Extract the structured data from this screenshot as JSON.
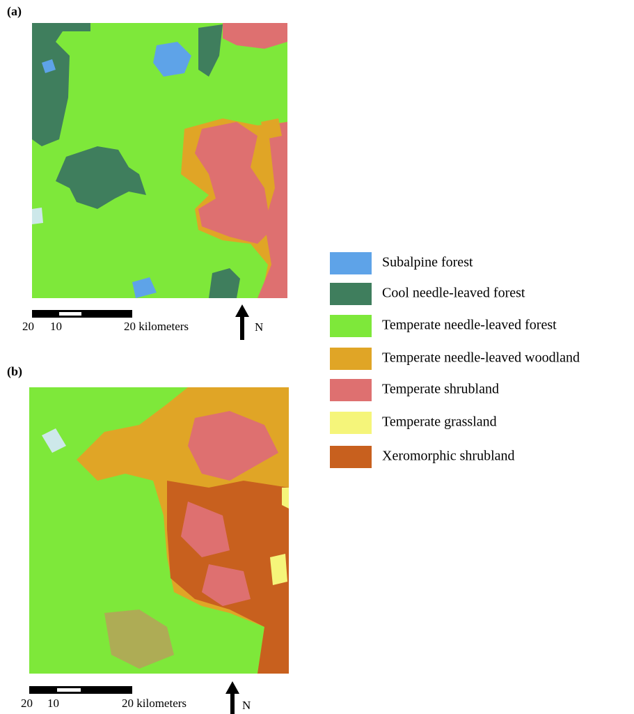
{
  "panels": [
    {
      "label": "(a)",
      "scale_labels": [
        "20",
        "10",
        "20 kilometers"
      ],
      "north": "N"
    },
    {
      "label": "(b)",
      "scale_labels": [
        "20",
        "10",
        "20 kilometers"
      ],
      "north": "N"
    }
  ],
  "legend": [
    {
      "label": "Subalpine forest",
      "color": "#5ea3e8"
    },
    {
      "label": "Cool needle-leaved forest",
      "color": "#3f7e5d"
    },
    {
      "label": "Temperate needle-leaved forest",
      "color": "#7ee83a"
    },
    {
      "label": "Temperate needle-leaved woodland",
      "color": "#e0a526"
    },
    {
      "label": "Temperate shrubland",
      "color": "#de7070"
    },
    {
      "label": "Temperate grassland",
      "color": "#f5f57a"
    },
    {
      "label": "Xeromorphic shrubland",
      "color": "#c8601e"
    }
  ]
}
